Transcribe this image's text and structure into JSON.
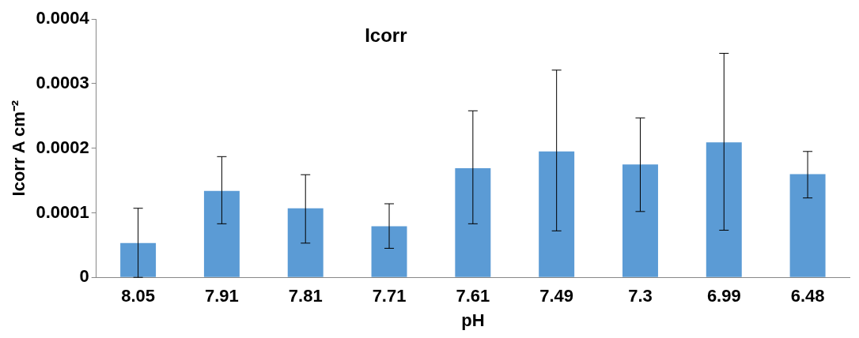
{
  "chart_data": {
    "type": "bar",
    "title": "Icorr",
    "xlabel": "pH",
    "ylabel": "Icorr A cm⁻²",
    "categories": [
      "8.05",
      "7.91",
      "7.81",
      "7.71",
      "7.61",
      "7.49",
      "7.3",
      "6.99",
      "6.48"
    ],
    "values": [
      5.3e-05,
      0.000134,
      0.000107,
      7.9e-05,
      0.000169,
      0.000195,
      0.000175,
      0.000209,
      0.00016
    ],
    "errors": [
      [
        0,
        0.000107
      ],
      [
        8.3e-05,
        0.000187
      ],
      [
        5.3e-05,
        0.000159
      ],
      [
        4.5e-05,
        0.000114
      ],
      [
        8.3e-05,
        0.000258
      ],
      [
        7.2e-05,
        0.000321
      ],
      [
        0.000102,
        0.000247
      ],
      [
        7.3e-05,
        0.000347
      ],
      [
        0.000123,
        0.000195
      ]
    ],
    "color": "#5b9bd5",
    "ylim": [
      0,
      0.0004
    ],
    "yticks": [
      0,
      0.0001,
      0.0002,
      0.0003,
      0.0004
    ],
    "grid": false,
    "legend": false
  }
}
